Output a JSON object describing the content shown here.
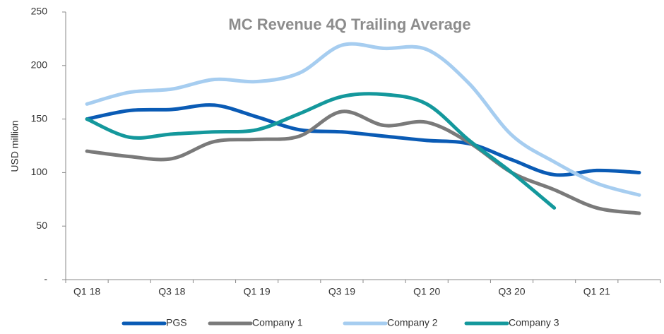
{
  "chart_data": {
    "type": "line",
    "title": "MC Revenue 4Q Trailing Average",
    "y_label": "USD million",
    "categories": [
      "Q1 18",
      null,
      "Q3 18",
      null,
      "Q1 19",
      null,
      "Q3 19",
      null,
      "Q1 20",
      null,
      "Q3 20",
      null,
      "Q1 21",
      null
    ],
    "series": [
      {
        "name": "PGS",
        "color": "#0a5bb5",
        "values": [
          150,
          158,
          159,
          163,
          152,
          140,
          138,
          134,
          130,
          127,
          112,
          98,
          102,
          100
        ]
      },
      {
        "name": "Company 1",
        "color": "#7a7a7a",
        "values": [
          120,
          115,
          113,
          129,
          131,
          134,
          157,
          144,
          147,
          128,
          100,
          84,
          67,
          62
        ]
      },
      {
        "name": "Company 2",
        "color": "#a6cdf0",
        "values": [
          164,
          175,
          178,
          187,
          185,
          193,
          219,
          216,
          215,
          183,
          135,
          110,
          90,
          79
        ]
      },
      {
        "name": "Company 3",
        "color": "#14989c",
        "values": [
          150,
          133,
          136,
          138,
          140,
          155,
          171,
          173,
          164,
          130,
          100,
          67,
          null,
          null
        ]
      }
    ],
    "ylim": [
      0,
      250
    ],
    "yticks": [
      {
        "value": 0,
        "label": "-"
      },
      50,
      100,
      150,
      200,
      250
    ],
    "grid": false,
    "legend": "bottom"
  }
}
